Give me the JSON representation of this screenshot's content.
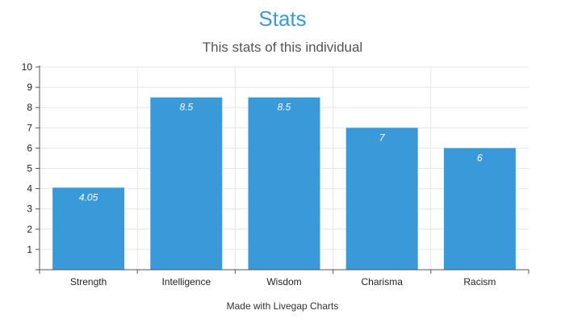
{
  "chart_data": {
    "type": "bar",
    "title": "Stats",
    "subtitle": "This stats of this individual",
    "categories": [
      "Strength",
      "Intelligence",
      "Wisdom",
      "Charisma",
      "Racism"
    ],
    "values": [
      4.05,
      8.5,
      8.5,
      7,
      6
    ],
    "data_labels": [
      "4.05",
      "8.5",
      "8.5",
      "7",
      "6"
    ],
    "y_ticks": [
      1,
      2,
      3,
      4,
      5,
      6,
      7,
      8,
      9,
      10
    ],
    "ylim": [
      0,
      10
    ],
    "grid": true,
    "xlabel": "",
    "ylabel": "",
    "bar_color": "#3a99d8",
    "title_color": "#3a99d8"
  },
  "footer": "Made with Livegap Charts"
}
